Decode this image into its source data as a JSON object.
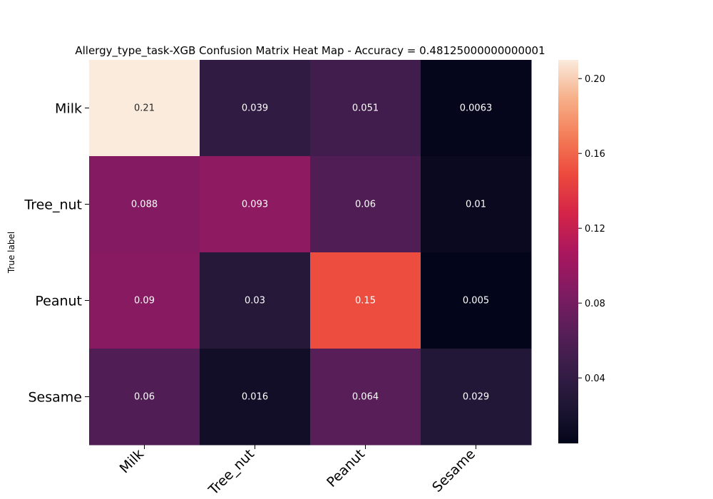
{
  "chart_data": {
    "type": "heatmap",
    "title": "Allergy_type_task-XGB Confusion Matrix Heat Map - Accuracy = 0.48125000000000001",
    "ylabel": "True label",
    "xlabel": "",
    "row_labels": [
      "Milk",
      "Tree_nut",
      "Peanut",
      "Sesame"
    ],
    "col_labels": [
      "Milk",
      "Tree_nut",
      "Peanut",
      "Sesame"
    ],
    "values": [
      [
        0.21,
        0.039,
        0.051,
        0.0063
      ],
      [
        0.088,
        0.093,
        0.06,
        0.01
      ],
      [
        0.09,
        0.03,
        0.15,
        0.005
      ],
      [
        0.06,
        0.016,
        0.064,
        0.029
      ]
    ],
    "annotations": [
      [
        "0.21",
        "0.039",
        "0.051",
        "0.0063"
      ],
      [
        "0.088",
        "0.093",
        "0.06",
        "0.01"
      ],
      [
        "0.09",
        "0.03",
        "0.15",
        "0.005"
      ],
      [
        "0.06",
        "0.016",
        "0.064",
        "0.029"
      ]
    ],
    "colorbar": {
      "min": 0.005,
      "max": 0.21,
      "ticks": [
        0.04,
        0.08,
        0.12,
        0.16,
        0.2
      ],
      "tick_labels": [
        "0.04",
        "0.08",
        "0.12",
        "0.16",
        "0.20"
      ]
    },
    "colormap": "rocket"
  }
}
